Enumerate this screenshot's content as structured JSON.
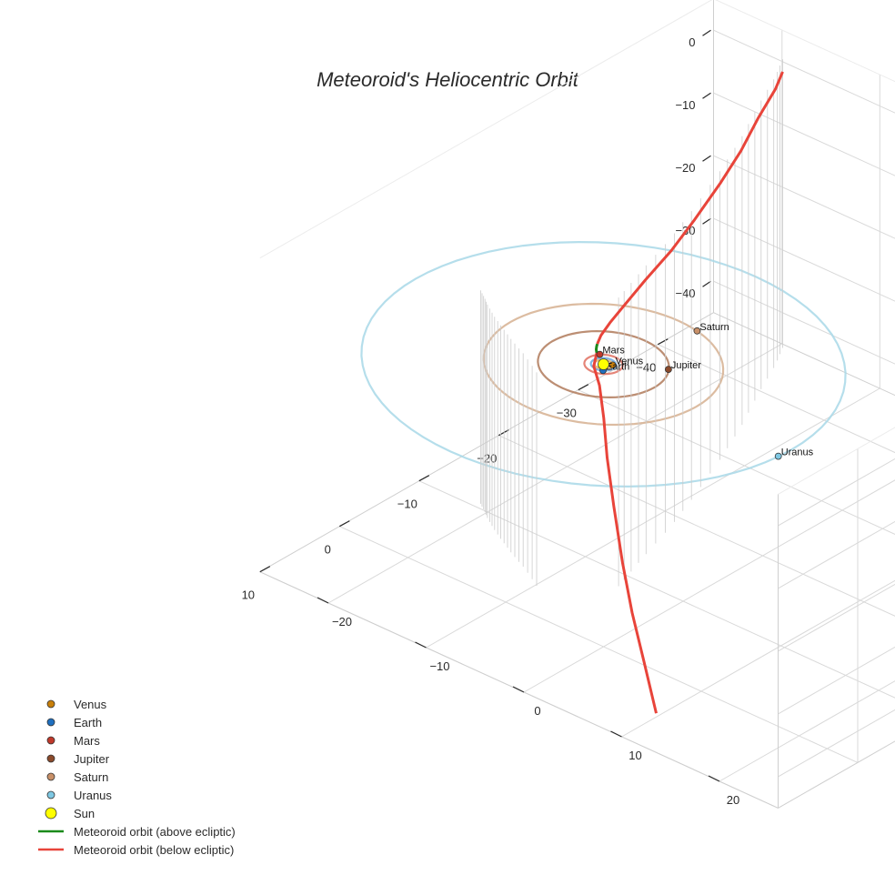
{
  "chart_data": {
    "type": "scatter",
    "title": "Meteoroid's Heliocentric Orbit",
    "xlabel": "",
    "ylabel": "",
    "zlabel": "",
    "xlim": [
      -47,
      10
    ],
    "ylim": [
      -27,
      26
    ],
    "zlim": [
      -45,
      5
    ],
    "x_ticks": [
      -40,
      -30,
      -20,
      -10,
      0,
      10
    ],
    "y_ticks": [
      -20,
      -10,
      0,
      10,
      20
    ],
    "z_ticks": [
      0,
      -10,
      -20,
      -30,
      -40
    ],
    "grid": true,
    "legend_position": "bottom-left",
    "bodies": [
      {
        "name": "Venus",
        "color": "#c87f0a",
        "orbit_radius": 0.72,
        "orbit_color": "#e8b060",
        "x": -0.4,
        "y": 0.6,
        "z": 0
      },
      {
        "name": "Earth",
        "color": "#1f6fbf",
        "orbit_radius": 1.0,
        "orbit_color": "#6fa8dc",
        "x": 0.8,
        "y": 0.6,
        "z": 0
      },
      {
        "name": "Mars",
        "color": "#c0392b",
        "orbit_radius": 1.52,
        "orbit_color": "#e07060",
        "x": -1.0,
        "y": -1.2,
        "z": 0
      },
      {
        "name": "Jupiter",
        "color": "#8b4a2b",
        "orbit_radius": 5.2,
        "orbit_color": "#b07a5a",
        "x": -3.0,
        "y": 4.2,
        "z": 0
      },
      {
        "name": "Saturn",
        "color": "#c89068",
        "orbit_radius": 9.5,
        "orbit_color": "#d6b090",
        "x": -9.3,
        "y": 2.0,
        "z": 0
      },
      {
        "name": "Uranus",
        "color": "#7ec8e3",
        "orbit_radius": 19.2,
        "orbit_color": "#a8d8e8",
        "x": 1.5,
        "y": 19.1,
        "z": 0
      }
    ],
    "sun": {
      "name": "Sun",
      "color": "#ffff00",
      "x": 0,
      "y": 0,
      "z": 0
    },
    "series": [
      {
        "name": "Meteoroid orbit (above ecliptic)",
        "color": "#1a8a1a",
        "x": [
          -1.0,
          -1.3,
          -1.6,
          -1.8
        ],
        "y": [
          -1.5,
          -1.8,
          -2.0,
          -2.1
        ],
        "z": [
          0.0,
          0.15,
          0.3,
          0.45
        ]
      },
      {
        "name": "Meteoroid orbit (below ecliptic)",
        "color": "#e8443a",
        "x": [
          -1.8,
          -3.0,
          -5.0,
          -8.0,
          -12.0,
          -17.0,
          -22.0,
          -28.0,
          -33.0,
          -38.0,
          -42.5,
          -45.0
        ],
        "y": [
          -2.1,
          -2.7,
          -3.4,
          -4.3,
          -5.5,
          -6.9,
          -8.6,
          -10.8,
          -12.8,
          -15.1,
          -17.0,
          -18.3
        ],
        "z": [
          0.45,
          0.5,
          0.6,
          0.7,
          0.8,
          0.9,
          0.95,
          1.0,
          1.0,
          1.0,
          1.0,
          1.0
        ]
      },
      {
        "name": "Meteoroid orbit (below ecliptic)",
        "color": "#e8443a",
        "x": [
          -1.0,
          0.0,
          0.5,
          1.2,
          2.0,
          3.0,
          4.0,
          5.0,
          6.0,
          7.5
        ],
        "y": [
          -1.5,
          -1.0,
          0.0,
          1.0,
          2.0,
          3.5,
          5.2,
          7.0,
          9.0,
          11.5
        ],
        "z": [
          0.0,
          -1.0,
          -3.0,
          -7.0,
          -12.0,
          -18.0,
          -25.0,
          -31.0,
          -36.5,
          -42.0
        ]
      }
    ]
  },
  "legend": {
    "items": [
      {
        "label": "Venus",
        "kind": "dot",
        "color": "#c87f0a"
      },
      {
        "label": "Earth",
        "kind": "dot",
        "color": "#1f6fbf"
      },
      {
        "label": "Mars",
        "kind": "dot",
        "color": "#c0392b"
      },
      {
        "label": "Jupiter",
        "kind": "dot",
        "color": "#8b4a2b"
      },
      {
        "label": "Saturn",
        "kind": "dot",
        "color": "#c89068"
      },
      {
        "label": "Uranus",
        "kind": "dot",
        "color": "#7ec8e3"
      },
      {
        "label": "Sun",
        "kind": "bigdot",
        "color": "#ffff00"
      },
      {
        "label": "Meteoroid orbit (above ecliptic)",
        "kind": "line",
        "color": "#1a8a1a"
      },
      {
        "label": "Meteoroid orbit (below ecliptic)",
        "kind": "line",
        "color": "#e8443a"
      }
    ]
  }
}
